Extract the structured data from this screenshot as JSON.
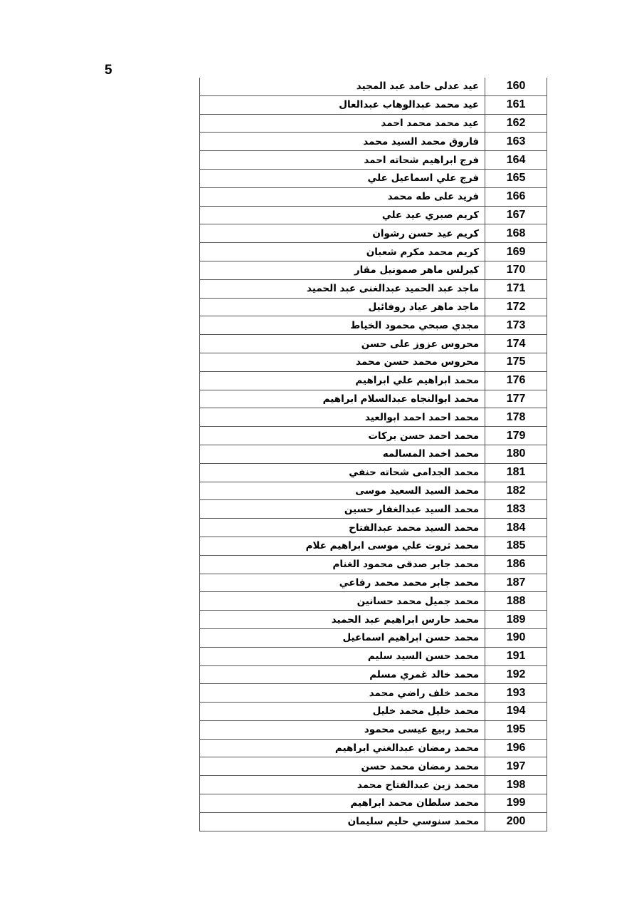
{
  "page_number": "5",
  "rows": [
    {
      "num": "160",
      "name": "عيد عدلى حامد عبد المجيد"
    },
    {
      "num": "161",
      "name": "عيد محمد عبدالوهاب عبدالعال"
    },
    {
      "num": "162",
      "name": "عيد محمد محمد احمد"
    },
    {
      "num": "163",
      "name": "فاروق محمد السيد محمد"
    },
    {
      "num": "164",
      "name": "فرج ابراهيم شحاته احمد"
    },
    {
      "num": "165",
      "name": "فرج علي اسماعيل علي"
    },
    {
      "num": "166",
      "name": "فريد على طه محمد"
    },
    {
      "num": "167",
      "name": "كريم صبري عيد علي"
    },
    {
      "num": "168",
      "name": "كريم عيد حسن رشوان"
    },
    {
      "num": "169",
      "name": "كريم محمد مكرم شعبان"
    },
    {
      "num": "170",
      "name": "كيرلس ماهر صمونيل مقار"
    },
    {
      "num": "171",
      "name": "ماجد عبد الحميد عبدالغنى عبد الحميد"
    },
    {
      "num": "172",
      "name": "ماجد ماهر عياد روفائيل"
    },
    {
      "num": "173",
      "name": "مجدي صبحي محمود الخياط"
    },
    {
      "num": "174",
      "name": "محروس عزوز على حسن"
    },
    {
      "num": "175",
      "name": "محروس محمد حسن محمد"
    },
    {
      "num": "176",
      "name": "محمد ابراهيم علي ابراهيم"
    },
    {
      "num": "177",
      "name": "محمد ابوالنجاه عبدالسلام ابراهيم"
    },
    {
      "num": "178",
      "name": "محمد احمد احمد ابوالعيد"
    },
    {
      "num": "179",
      "name": "محمد احمد حسن بركات"
    },
    {
      "num": "180",
      "name": "محمد اخمد  المسالمه"
    },
    {
      "num": "181",
      "name": "محمد الجدامى شحاته حنفي"
    },
    {
      "num": "182",
      "name": "محمد السيد السعيد موسى"
    },
    {
      "num": "183",
      "name": "محمد السيد عبدالغفار حسين"
    },
    {
      "num": "184",
      "name": "محمد السيد محمد عبدالفتاح"
    },
    {
      "num": "185",
      "name": "محمد ثروت علي موسى ابراهيم علام"
    },
    {
      "num": "186",
      "name": "محمد جابر صدقى محمود الغنام"
    },
    {
      "num": "187",
      "name": "محمد جابر محمد محمد رفاعي"
    },
    {
      "num": "188",
      "name": "محمد جميل محمد حسانين"
    },
    {
      "num": "189",
      "name": "محمد حارس ابراهيم عبد الحميد"
    },
    {
      "num": "190",
      "name": "محمد حسن ابراهيم اسماعيل"
    },
    {
      "num": "191",
      "name": "محمد حسن السيد سليم"
    },
    {
      "num": "192",
      "name": "محمد خالد غمري مسلم"
    },
    {
      "num": "193",
      "name": "محمد خلف راضي محمد"
    },
    {
      "num": "194",
      "name": "محمد خليل محمد خليل"
    },
    {
      "num": "195",
      "name": "محمد ربيع عيسى محمود"
    },
    {
      "num": "196",
      "name": "محمد رمضان عبدالغني ابراهيم"
    },
    {
      "num": "197",
      "name": "محمد رمضان محمد حسن"
    },
    {
      "num": "198",
      "name": "محمد زين عبدالفتاح محمد"
    },
    {
      "num": "199",
      "name": "محمد سلطان محمد ابراهيم"
    },
    {
      "num": "200",
      "name": "محمد سنوسي حليم سليمان"
    }
  ]
}
